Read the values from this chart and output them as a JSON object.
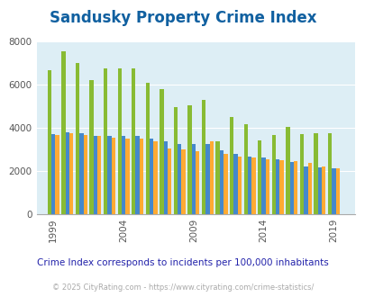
{
  "title": "Sandusky Property Crime Index",
  "title_color": "#1060a0",
  "bg_color": "#ddeef5",
  "fig_bg": "#ffffff",
  "ylim": [
    0,
    8000
  ],
  "yticks": [
    0,
    2000,
    4000,
    6000,
    8000
  ],
  "xtick_labels": [
    "1999",
    "2004",
    "2009",
    "2014",
    "2019"
  ],
  "years": [
    1999,
    2000,
    2001,
    2002,
    2003,
    2004,
    2005,
    2006,
    2007,
    2008,
    2009,
    2010,
    2011,
    2012,
    2013,
    2014,
    2015,
    2016,
    2017,
    2018,
    2019
  ],
  "sandusky": [
    6650,
    7550,
    7000,
    6200,
    6750,
    6750,
    6750,
    6100,
    5800,
    4950,
    5050,
    5300,
    3350,
    4500,
    4150,
    3400,
    3650,
    4050,
    3700,
    3750,
    3750
  ],
  "ohio": [
    3700,
    3800,
    3750,
    3600,
    3600,
    3600,
    3600,
    3500,
    3350,
    3250,
    3250,
    3250,
    2950,
    2800,
    2650,
    2600,
    2550,
    2400,
    2200,
    2150,
    2100
  ],
  "national": [
    3650,
    3750,
    3650,
    3600,
    3550,
    3500,
    3500,
    3350,
    3050,
    3000,
    2900,
    3350,
    2800,
    2650,
    2600,
    2550,
    2500,
    2450,
    2350,
    2200,
    2100
  ],
  "color_sandusky": "#88bb33",
  "color_ohio": "#4488cc",
  "color_national": "#ffaa33",
  "bar_width": 0.28,
  "legend_fontsize": 8.5,
  "title_fontsize": 12,
  "tick_fontsize": 7.5,
  "subtitle": "Crime Index corresponds to incidents per 100,000 inhabitants",
  "subtitle_color": "#2222aa",
  "subtitle_fontsize": 7.5,
  "footer": "© 2025 CityRating.com - https://www.cityrating.com/crime-statistics/",
  "footer_color": "#aaaaaa",
  "footer_fontsize": 6.0
}
